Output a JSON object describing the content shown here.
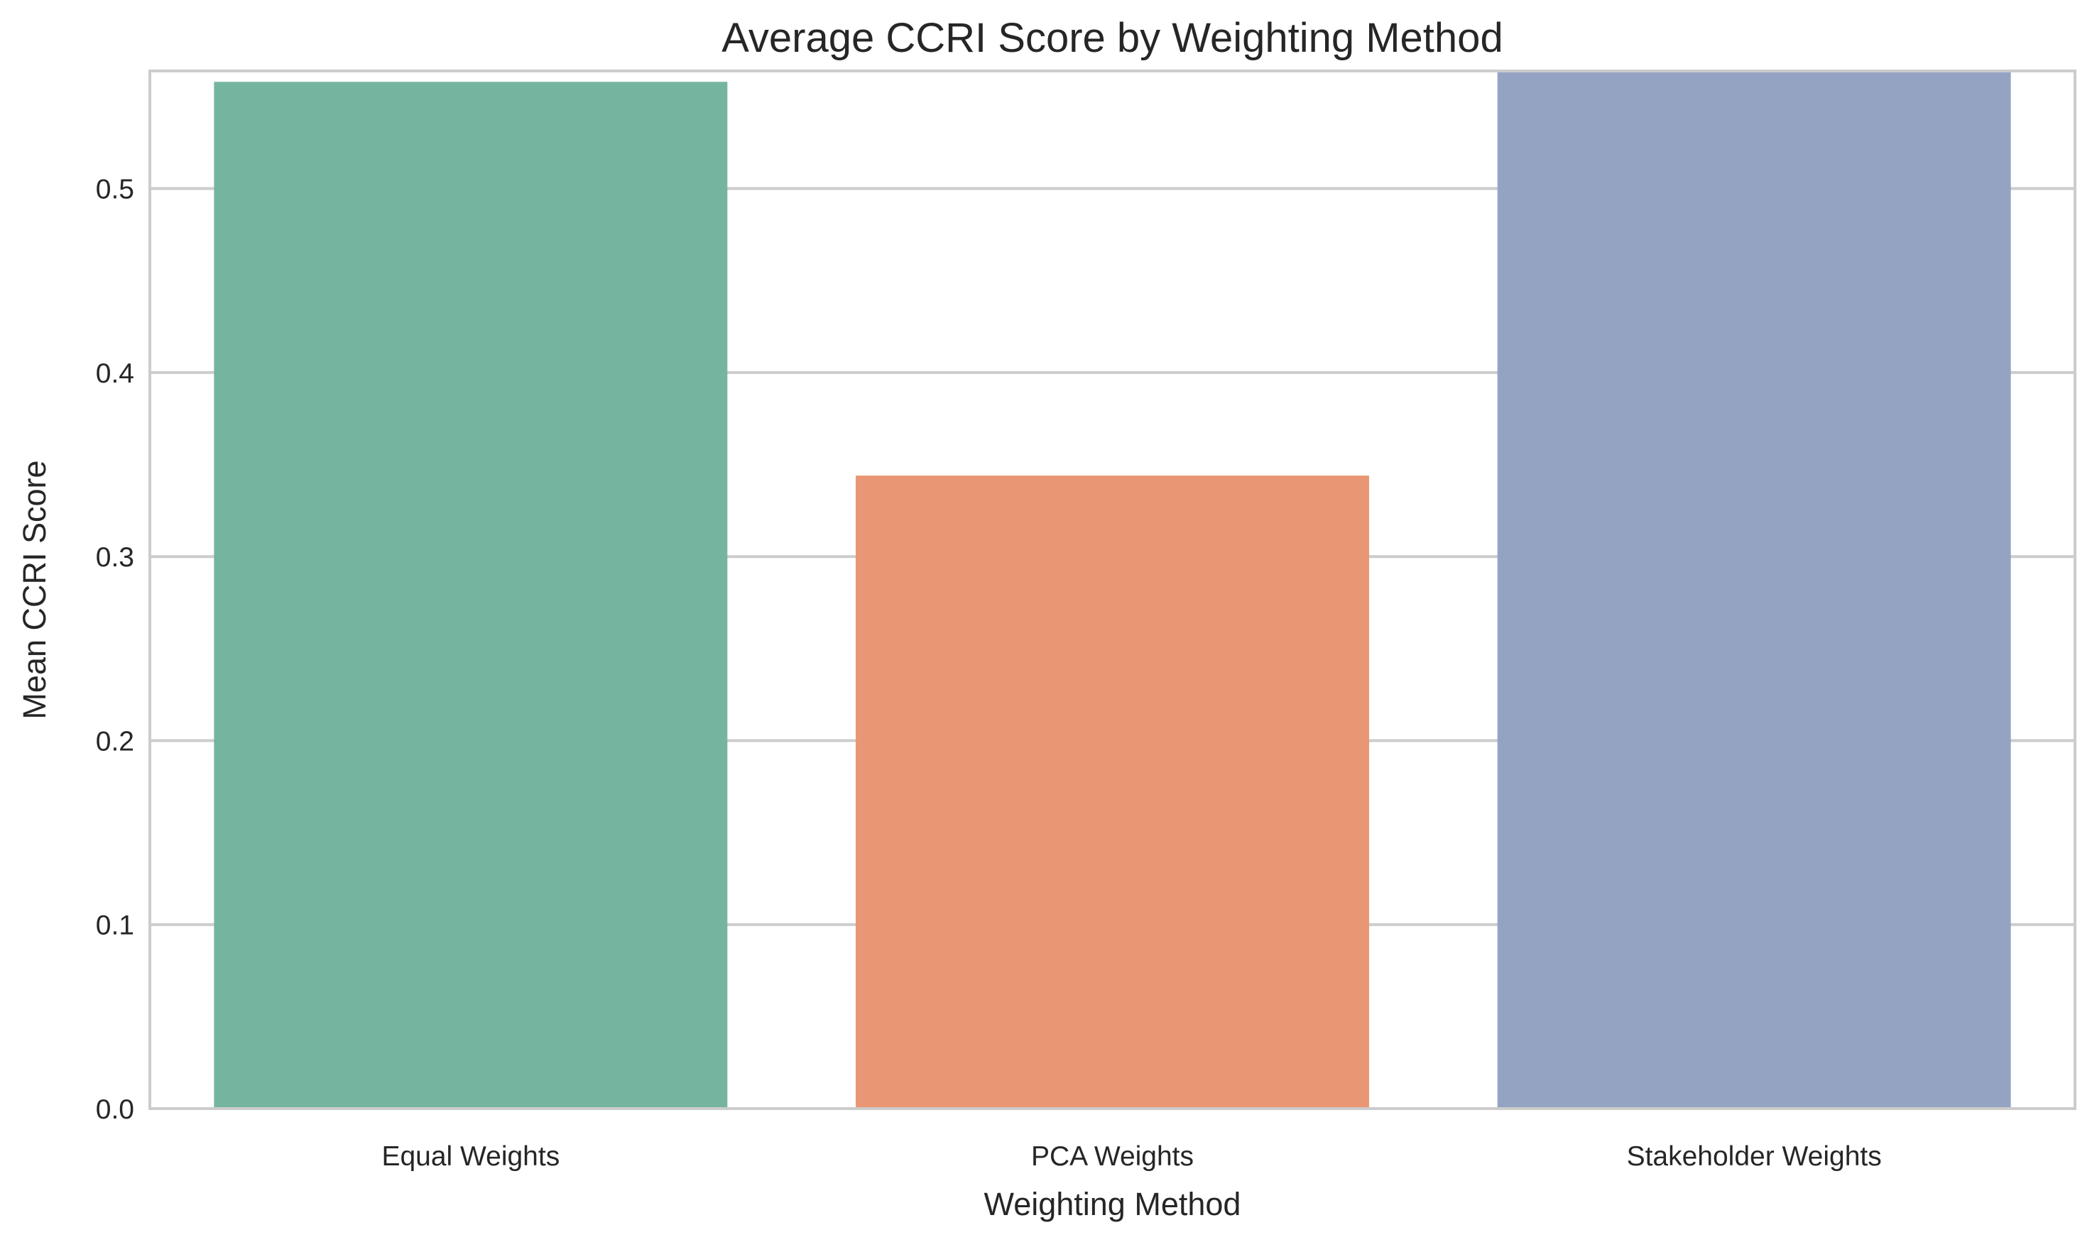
{
  "chart_data": {
    "type": "bar",
    "title": "Average CCRI Score by Weighting Method",
    "xlabel": "Weighting Method",
    "ylabel": "Mean CCRI Score",
    "categories": [
      "Equal Weights",
      "PCA Weights",
      "Stakeholder Weights"
    ],
    "values": [
      0.558,
      0.344,
      0.564
    ],
    "colors": [
      "#75b5a0",
      "#e99674",
      "#95a3c3"
    ],
    "ylim": [
      0,
      0.5639
    ],
    "yticks": [
      0.0,
      0.1,
      0.2,
      0.3,
      0.4,
      0.5
    ],
    "ytick_labels": [
      "0.0",
      "0.1",
      "0.2",
      "0.3",
      "0.4",
      "0.5"
    ],
    "grid": "horizontal",
    "legend": "none"
  }
}
